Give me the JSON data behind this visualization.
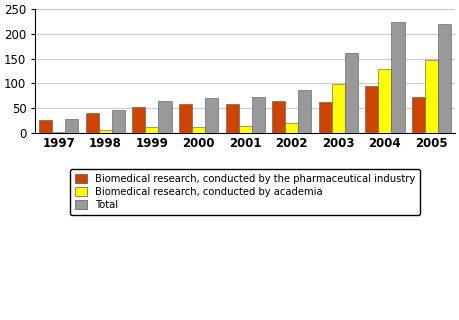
{
  "years": [
    "1997",
    "1998",
    "1999",
    "2000",
    "2001",
    "2002",
    "2003",
    "2004",
    "2005"
  ],
  "pharma": [
    26,
    40,
    53,
    58,
    59,
    65,
    63,
    95,
    73
  ],
  "academia": [
    1,
    5,
    11,
    12,
    14,
    20,
    98,
    130,
    148
  ],
  "total": [
    27,
    46,
    65,
    71,
    72,
    86,
    162,
    224,
    220
  ],
  "pharma_color": "#CC4400",
  "academia_color": "#FFFF00",
  "total_color": "#999999",
  "ylim": [
    0,
    250
  ],
  "yticks": [
    0,
    50,
    100,
    150,
    200,
    250
  ],
  "legend_labels": [
    "Biomedical research, conducted by the pharmaceutical industry",
    "Biomedical research, conducted by academia",
    "Total"
  ],
  "bar_width": 0.28,
  "figsize": [
    4.59,
    3.2
  ],
  "dpi": 100
}
